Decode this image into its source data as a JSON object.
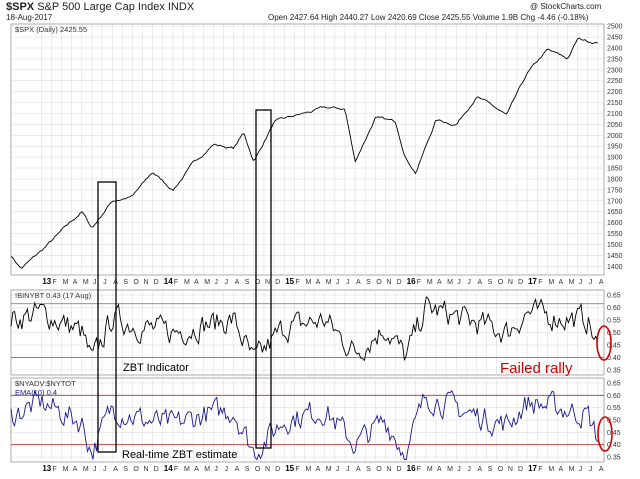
{
  "header": {
    "symbol": "$SPX",
    "name": "S&P 500 Large Cap Index INDX",
    "date": "18-Aug-2017",
    "brand": "@ StockCharts.com",
    "open_label": "Open",
    "open": "2427.64",
    "high_label": "High",
    "high": "2440.27",
    "low_label": "Low",
    "low": "2420.69",
    "close_label": "Close",
    "close": "2425.55",
    "volume_label": "Volume",
    "volume": "1.9B",
    "chg_label": "Chg",
    "chg": "-4.46 (-0.18%)"
  },
  "colors": {
    "price": "#000000",
    "zbt": "#000000",
    "ema": "#1a1a8c",
    "grid": "#d8d8d8",
    "ref_line": "#6060c0",
    "annotation": "#d00000",
    "box": "#000000"
  },
  "chart_data": [
    {
      "type": "line",
      "legend": "$SPX (Daily) 2425.55",
      "x_ticks": [
        "13",
        "F",
        "M",
        "A",
        "M",
        "J",
        "J",
        "A",
        "S",
        "O",
        "N",
        "D",
        "14",
        "F",
        "M",
        "A",
        "M",
        "J",
        "J",
        "A",
        "S",
        "O",
        "N",
        "D",
        "15",
        "F",
        "M",
        "A",
        "M",
        "J",
        "J",
        "A",
        "S",
        "O",
        "N",
        "D",
        "16",
        "F",
        "M",
        "A",
        "M",
        "J",
        "J",
        "A",
        "S",
        "O",
        "N",
        "D",
        "17",
        "F",
        "M",
        "A",
        "M",
        "J",
        "J",
        "A"
      ],
      "y_ticks": [
        1400,
        1450,
        1500,
        1550,
        1600,
        1650,
        1700,
        1750,
        1800,
        1850,
        1900,
        1950,
        2000,
        2050,
        2100,
        2150,
        2200,
        2250,
        2300,
        2350,
        2400,
        2450,
        2500
      ],
      "ylim": [
        1360,
        2510
      ],
      "x": [
        "2012-10",
        "2012-11",
        "2013-01",
        "2013-03",
        "2013-05",
        "2013-06",
        "2013-08",
        "2013-10",
        "2013-12",
        "2014-02",
        "2014-04",
        "2014-06",
        "2014-08",
        "2014-09",
        "2014-10",
        "2014-12",
        "2015-03",
        "2015-05",
        "2015-07",
        "2015-08",
        "2015-10",
        "2015-12",
        "2016-01",
        "2016-02",
        "2016-04",
        "2016-06",
        "2016-08",
        "2016-11",
        "2017-01",
        "2017-03",
        "2017-05",
        "2017-06",
        "2017-08"
      ],
      "values": [
        1450,
        1390,
        1470,
        1560,
        1650,
        1575,
        1700,
        1720,
        1830,
        1750,
        1870,
        1960,
        1940,
        2010,
        1880,
        2060,
        2100,
        2125,
        2120,
        1880,
        2080,
        2060,
        1900,
        1830,
        2070,
        2050,
        2180,
        2090,
        2280,
        2390,
        2350,
        2440,
        2425
      ]
    },
    {
      "type": "line",
      "legend": "!BINYBT 0.43 (17 Aug)",
      "annotation": "ZBT Indicator",
      "callout": "Failed rally",
      "ylim": [
        0.33,
        0.67
      ],
      "y_ticks": [
        0.35,
        0.4,
        0.45,
        0.5,
        0.55,
        0.6,
        0.65
      ],
      "reference_lines": [
        0.4,
        0.615
      ],
      "x": [
        "2012-10",
        "2013-01",
        "2013-05",
        "2013-06",
        "2013-08",
        "2013-11",
        "2014-02",
        "2014-05",
        "2014-08",
        "2014-10",
        "2015-01",
        "2015-05",
        "2015-08",
        "2015-11",
        "2016-01",
        "2016-03",
        "2016-07",
        "2016-11",
        "2017-01",
        "2017-04",
        "2017-07",
        "2017-08"
      ],
      "values": [
        0.55,
        0.58,
        0.5,
        0.38,
        0.56,
        0.52,
        0.5,
        0.53,
        0.55,
        0.38,
        0.52,
        0.55,
        0.42,
        0.52,
        0.4,
        0.6,
        0.55,
        0.5,
        0.58,
        0.56,
        0.55,
        0.43
      ]
    },
    {
      "type": "line",
      "legend": "$NYADV:$NYTOT",
      "series_label": "EMA(10) 0.4",
      "annotation": "Real-time ZBT estimate",
      "ylim": [
        0.33,
        0.67
      ],
      "y_ticks": [
        0.35,
        0.4,
        0.45,
        0.5,
        0.55,
        0.6,
        0.65
      ],
      "reference_lines": [
        0.4,
        0.6
      ],
      "x": [
        "2012-10",
        "2013-01",
        "2013-05",
        "2013-06",
        "2013-08",
        "2013-11",
        "2014-02",
        "2014-05",
        "2014-08",
        "2014-10",
        "2015-01",
        "2015-05",
        "2015-08",
        "2015-11",
        "2016-01",
        "2016-03",
        "2016-07",
        "2016-11",
        "2017-01",
        "2017-04",
        "2017-07",
        "2017-08"
      ],
      "values": [
        0.52,
        0.57,
        0.49,
        0.37,
        0.55,
        0.5,
        0.48,
        0.52,
        0.54,
        0.37,
        0.5,
        0.54,
        0.4,
        0.5,
        0.36,
        0.6,
        0.53,
        0.48,
        0.57,
        0.55,
        0.52,
        0.42
      ]
    }
  ]
}
